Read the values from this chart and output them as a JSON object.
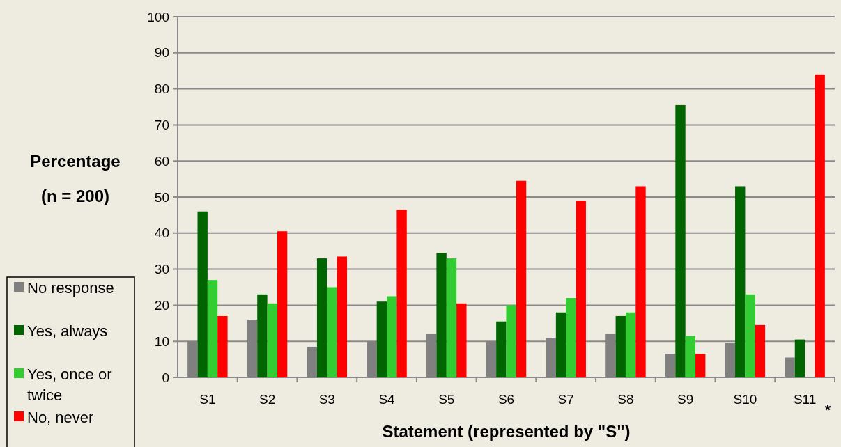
{
  "chart_data": {
    "type": "bar",
    "xlabel": "Statement (represented by \"S\")",
    "ylabel": "Percentage (n = 200)",
    "categories": [
      "S1",
      "S2",
      "S3",
      "S4",
      "S5",
      "S6",
      "S7",
      "S8",
      "S9",
      "S10",
      "S11"
    ],
    "series": [
      {
        "name": "No response",
        "color": "#808080",
        "values": [
          10,
          16,
          8.5,
          10,
          12,
          10,
          11,
          12,
          6.5,
          9.5,
          5.5
        ]
      },
      {
        "name": "Yes, always",
        "color": "#006400",
        "values": [
          46,
          23,
          33,
          21,
          34.5,
          15.5,
          18,
          17,
          75.5,
          53,
          10.5
        ]
      },
      {
        "name": "Yes, once or twice",
        "color": "#33cc33",
        "values": [
          27,
          20.5,
          25,
          22.5,
          33,
          20,
          22,
          18,
          11.5,
          23,
          0
        ]
      },
      {
        "name": "No, never",
        "color": "#ff0000",
        "values": [
          17,
          40.5,
          33.5,
          46.5,
          20.5,
          54.5,
          49,
          53,
          6.5,
          14.5,
          84
        ]
      }
    ],
    "ylim": [
      0,
      100
    ],
    "yticks": [
      0,
      10,
      20,
      30,
      40,
      50,
      60,
      70,
      80,
      90,
      100
    ],
    "grid": "y",
    "legend": "left",
    "annotations": [
      "*"
    ]
  }
}
